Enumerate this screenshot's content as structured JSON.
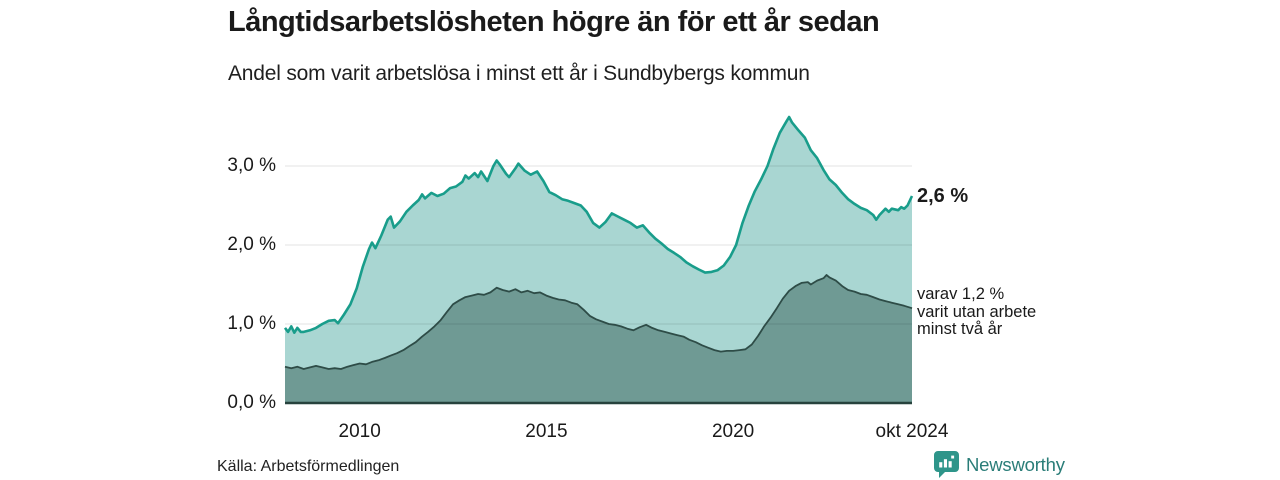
{
  "header": {
    "title": "Långtidsarbetslösheten högre än för ett år sedan",
    "subtitle": "Andel som varit arbetslösa i minst ett år i Sundbybergs kommun"
  },
  "annotations": {
    "end_total": "2,6 %",
    "end_two_year": "varav 1,2 %\nvarit utan arbete\nminst två år"
  },
  "footer": {
    "source": "Källa: Arbetsförmedlingen",
    "brand": "Newsworthy"
  },
  "colors": {
    "total_line": "#199d8b",
    "total_fill": "#a9d6d2",
    "two_year_line": "#2e4c47",
    "two_year_fill": "#6f9a94",
    "baseline": "#27423d",
    "gridline": "rgba(0,0,0,0.09)",
    "brand_teal": "#2a7d78",
    "brand_icon": "#2e958a"
  },
  "chart_data": {
    "type": "area",
    "title": "Långtidsarbetslösheten högre än för ett år sedan",
    "subtitle": "Andel som varit arbetslösa i minst ett år i Sundbybergs kommun",
    "unit": "%",
    "x_range": [
      2008.0,
      2024.79
    ],
    "y_range": [
      0,
      3.71
    ],
    "grid": "horizontal",
    "x_ticks": [
      {
        "label": "2010",
        "year": 2010.0
      },
      {
        "label": "2015",
        "year": 2015.0
      },
      {
        "label": "2020",
        "year": 2020.0
      },
      {
        "label": "okt 2024",
        "year": 2024.79
      }
    ],
    "y_ticks": [
      {
        "label": "0,0 %",
        "value": 0.0
      },
      {
        "label": "1,0 %",
        "value": 1.0
      },
      {
        "label": "2,0 %",
        "value": 2.0
      },
      {
        "label": "3,0 %",
        "value": 3.0
      }
    ],
    "series": [
      {
        "name": "arbetslosa_minst_ett_ar",
        "end_label": "2,6 %",
        "end_value": 2.6,
        "points": [
          [
            2008.0,
            0.95
          ],
          [
            2008.08,
            0.9
          ],
          [
            2008.17,
            0.97
          ],
          [
            2008.25,
            0.89
          ],
          [
            2008.33,
            0.95
          ],
          [
            2008.42,
            0.9
          ],
          [
            2008.5,
            0.9
          ],
          [
            2008.67,
            0.92
          ],
          [
            2008.83,
            0.95
          ],
          [
            2009.0,
            1.0
          ],
          [
            2009.17,
            1.04
          ],
          [
            2009.33,
            1.05
          ],
          [
            2009.42,
            1.01
          ],
          [
            2009.58,
            1.12
          ],
          [
            2009.75,
            1.25
          ],
          [
            2009.92,
            1.45
          ],
          [
            2010.08,
            1.72
          ],
          [
            2010.25,
            1.95
          ],
          [
            2010.33,
            2.03
          ],
          [
            2010.42,
            1.96
          ],
          [
            2010.58,
            2.12
          ],
          [
            2010.75,
            2.32
          ],
          [
            2010.83,
            2.36
          ],
          [
            2010.92,
            2.22
          ],
          [
            2011.08,
            2.3
          ],
          [
            2011.25,
            2.42
          ],
          [
            2011.42,
            2.5
          ],
          [
            2011.58,
            2.57
          ],
          [
            2011.67,
            2.64
          ],
          [
            2011.75,
            2.59
          ],
          [
            2011.92,
            2.66
          ],
          [
            2012.08,
            2.62
          ],
          [
            2012.25,
            2.65
          ],
          [
            2012.42,
            2.72
          ],
          [
            2012.58,
            2.74
          ],
          [
            2012.75,
            2.8
          ],
          [
            2012.83,
            2.88
          ],
          [
            2012.92,
            2.84
          ],
          [
            2013.08,
            2.91
          ],
          [
            2013.17,
            2.86
          ],
          [
            2013.25,
            2.93
          ],
          [
            2013.42,
            2.81
          ],
          [
            2013.58,
            3.0
          ],
          [
            2013.67,
            3.07
          ],
          [
            2013.75,
            3.02
          ],
          [
            2013.92,
            2.9
          ],
          [
            2014.0,
            2.86
          ],
          [
            2014.17,
            2.97
          ],
          [
            2014.25,
            3.03
          ],
          [
            2014.42,
            2.94
          ],
          [
            2014.58,
            2.89
          ],
          [
            2014.75,
            2.93
          ],
          [
            2014.92,
            2.81
          ],
          [
            2015.08,
            2.67
          ],
          [
            2015.25,
            2.63
          ],
          [
            2015.42,
            2.58
          ],
          [
            2015.58,
            2.56
          ],
          [
            2015.75,
            2.53
          ],
          [
            2015.92,
            2.5
          ],
          [
            2016.08,
            2.42
          ],
          [
            2016.25,
            2.28
          ],
          [
            2016.42,
            2.22
          ],
          [
            2016.58,
            2.29
          ],
          [
            2016.75,
            2.4
          ],
          [
            2016.92,
            2.36
          ],
          [
            2017.08,
            2.32
          ],
          [
            2017.25,
            2.28
          ],
          [
            2017.42,
            2.22
          ],
          [
            2017.58,
            2.25
          ],
          [
            2017.75,
            2.16
          ],
          [
            2017.92,
            2.08
          ],
          [
            2018.08,
            2.02
          ],
          [
            2018.25,
            1.95
          ],
          [
            2018.42,
            1.9
          ],
          [
            2018.58,
            1.85
          ],
          [
            2018.75,
            1.78
          ],
          [
            2018.92,
            1.73
          ],
          [
            2019.08,
            1.69
          ],
          [
            2019.25,
            1.65
          ],
          [
            2019.42,
            1.66
          ],
          [
            2019.58,
            1.68
          ],
          [
            2019.75,
            1.74
          ],
          [
            2019.92,
            1.85
          ],
          [
            2020.08,
            2.0
          ],
          [
            2020.25,
            2.28
          ],
          [
            2020.42,
            2.5
          ],
          [
            2020.58,
            2.68
          ],
          [
            2020.75,
            2.83
          ],
          [
            2020.92,
            3.0
          ],
          [
            2021.08,
            3.22
          ],
          [
            2021.25,
            3.42
          ],
          [
            2021.42,
            3.56
          ],
          [
            2021.5,
            3.62
          ],
          [
            2021.58,
            3.55
          ],
          [
            2021.75,
            3.45
          ],
          [
            2021.92,
            3.36
          ],
          [
            2022.08,
            3.2
          ],
          [
            2022.25,
            3.1
          ],
          [
            2022.42,
            2.95
          ],
          [
            2022.58,
            2.83
          ],
          [
            2022.75,
            2.76
          ],
          [
            2022.92,
            2.66
          ],
          [
            2023.08,
            2.58
          ],
          [
            2023.25,
            2.52
          ],
          [
            2023.42,
            2.47
          ],
          [
            2023.58,
            2.44
          ],
          [
            2023.75,
            2.38
          ],
          [
            2023.83,
            2.32
          ],
          [
            2023.92,
            2.38
          ],
          [
            2024.08,
            2.46
          ],
          [
            2024.17,
            2.42
          ],
          [
            2024.25,
            2.46
          ],
          [
            2024.42,
            2.44
          ],
          [
            2024.5,
            2.48
          ],
          [
            2024.58,
            2.46
          ],
          [
            2024.67,
            2.5
          ],
          [
            2024.79,
            2.62
          ]
        ]
      },
      {
        "name": "utan_arbete_minst_tva_ar",
        "end_label": "varav 1,2 % varit utan arbete minst två år",
        "end_value": 1.2,
        "points": [
          [
            2008.0,
            0.46
          ],
          [
            2008.17,
            0.44
          ],
          [
            2008.33,
            0.46
          ],
          [
            2008.5,
            0.43
          ],
          [
            2008.67,
            0.45
          ],
          [
            2008.83,
            0.47
          ],
          [
            2009.0,
            0.45
          ],
          [
            2009.17,
            0.43
          ],
          [
            2009.33,
            0.44
          ],
          [
            2009.5,
            0.43
          ],
          [
            2009.67,
            0.46
          ],
          [
            2009.83,
            0.48
          ],
          [
            2010.0,
            0.5
          ],
          [
            2010.17,
            0.49
          ],
          [
            2010.33,
            0.52
          ],
          [
            2010.5,
            0.54
          ],
          [
            2010.67,
            0.57
          ],
          [
            2010.83,
            0.6
          ],
          [
            2011.0,
            0.63
          ],
          [
            2011.17,
            0.67
          ],
          [
            2011.33,
            0.72
          ],
          [
            2011.5,
            0.77
          ],
          [
            2011.67,
            0.84
          ],
          [
            2011.83,
            0.9
          ],
          [
            2012.0,
            0.97
          ],
          [
            2012.17,
            1.05
          ],
          [
            2012.33,
            1.15
          ],
          [
            2012.5,
            1.25
          ],
          [
            2012.67,
            1.3
          ],
          [
            2012.83,
            1.34
          ],
          [
            2013.0,
            1.36
          ],
          [
            2013.17,
            1.38
          ],
          [
            2013.33,
            1.37
          ],
          [
            2013.5,
            1.4
          ],
          [
            2013.67,
            1.46
          ],
          [
            2013.83,
            1.43
          ],
          [
            2014.0,
            1.41
          ],
          [
            2014.17,
            1.44
          ],
          [
            2014.33,
            1.4
          ],
          [
            2014.5,
            1.42
          ],
          [
            2014.67,
            1.39
          ],
          [
            2014.83,
            1.4
          ],
          [
            2015.0,
            1.36
          ],
          [
            2015.17,
            1.33
          ],
          [
            2015.33,
            1.31
          ],
          [
            2015.5,
            1.3
          ],
          [
            2015.67,
            1.27
          ],
          [
            2015.83,
            1.25
          ],
          [
            2016.0,
            1.18
          ],
          [
            2016.17,
            1.1
          ],
          [
            2016.33,
            1.06
          ],
          [
            2016.5,
            1.03
          ],
          [
            2016.67,
            1.0
          ],
          [
            2016.83,
            0.99
          ],
          [
            2017.0,
            0.97
          ],
          [
            2017.17,
            0.94
          ],
          [
            2017.33,
            0.92
          ],
          [
            2017.5,
            0.96
          ],
          [
            2017.67,
            0.99
          ],
          [
            2017.83,
            0.95
          ],
          [
            2018.0,
            0.92
          ],
          [
            2018.17,
            0.9
          ],
          [
            2018.33,
            0.88
          ],
          [
            2018.5,
            0.86
          ],
          [
            2018.67,
            0.84
          ],
          [
            2018.83,
            0.8
          ],
          [
            2019.0,
            0.77
          ],
          [
            2019.17,
            0.73
          ],
          [
            2019.33,
            0.7
          ],
          [
            2019.5,
            0.67
          ],
          [
            2019.67,
            0.65
          ],
          [
            2019.83,
            0.66
          ],
          [
            2020.0,
            0.66
          ],
          [
            2020.17,
            0.67
          ],
          [
            2020.33,
            0.68
          ],
          [
            2020.5,
            0.74
          ],
          [
            2020.67,
            0.85
          ],
          [
            2020.83,
            0.97
          ],
          [
            2021.0,
            1.08
          ],
          [
            2021.17,
            1.2
          ],
          [
            2021.33,
            1.32
          ],
          [
            2021.5,
            1.42
          ],
          [
            2021.67,
            1.48
          ],
          [
            2021.83,
            1.52
          ],
          [
            2022.0,
            1.53
          ],
          [
            2022.08,
            1.5
          ],
          [
            2022.25,
            1.55
          ],
          [
            2022.42,
            1.58
          ],
          [
            2022.5,
            1.62
          ],
          [
            2022.58,
            1.59
          ],
          [
            2022.75,
            1.55
          ],
          [
            2022.92,
            1.48
          ],
          [
            2023.08,
            1.43
          ],
          [
            2023.25,
            1.41
          ],
          [
            2023.42,
            1.38
          ],
          [
            2023.58,
            1.37
          ],
          [
            2023.75,
            1.34
          ],
          [
            2023.92,
            1.31
          ],
          [
            2024.08,
            1.29
          ],
          [
            2024.25,
            1.27
          ],
          [
            2024.42,
            1.25
          ],
          [
            2024.58,
            1.23
          ],
          [
            2024.79,
            1.2
          ]
        ]
      }
    ],
    "legend_position": "none",
    "source": "Källa: Arbetsförmedlingen"
  }
}
